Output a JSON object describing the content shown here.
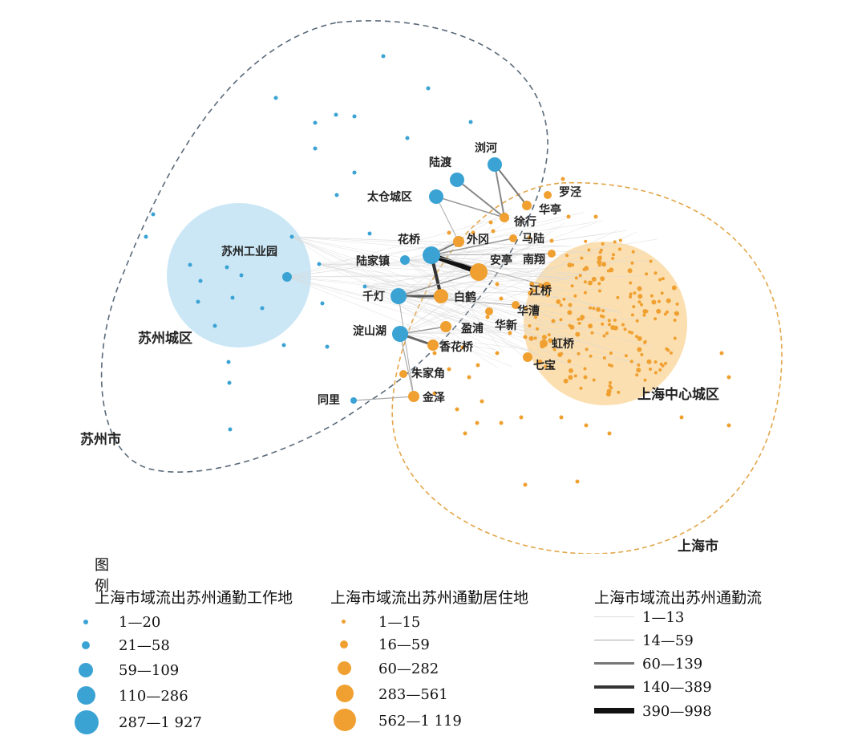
{
  "colors": {
    "work_blue": "#3aa3d4",
    "work_light": "#cbe7f6",
    "residence_orange": "#f0a030",
    "residence_light": "#fbdfb0",
    "suzhou_boundary": "#5a6a7a",
    "shanghai_boundary": "#e3a64a",
    "flow_gray": "#999999",
    "flow_black": "#111111"
  },
  "regions": {
    "suzhou_city": "苏州市",
    "suzhou_district": "苏州城区",
    "suzhou_park": "苏州工业园",
    "shanghai_city": "上海市",
    "shanghai_center": "上海中心城区"
  },
  "places": {
    "liuhe": "浏河",
    "ludu": "陆渡",
    "taicang": "太仓城区",
    "huaqiao": "花桥",
    "lujiazhen": "陆家镇",
    "qiandeng": "千灯",
    "dianshanhu": "淀山湖",
    "tongli": "同里",
    "luojing": "罗泾",
    "huating": "华亭",
    "xuhang": "徐行",
    "malu": "马陆",
    "waigang": "外冈",
    "anting": "安亭",
    "nanxiang": "南翔",
    "baihe": "白鹤",
    "jiangqiao": "江桥",
    "huacao": "华漕",
    "huaxin": "华新",
    "yingpu": "盈浦",
    "xianghuaqiao": "香花桥",
    "hongqiao": "虹桥",
    "qibao": "七宝",
    "zhujiajiao": "朱家角",
    "jinze": "金泽"
  },
  "legend": {
    "heading": "图例",
    "workplace": {
      "title": "上海市域流出苏州通勤工作地",
      "classes": [
        "1—20",
        "21—58",
        "59—109",
        "110—286",
        "287—1 927"
      ]
    },
    "residence": {
      "title": "上海市域流出苏州通勤居住地",
      "classes": [
        "1—15",
        "16—59",
        "60—282",
        "283—561",
        "562—1 119"
      ]
    },
    "flow": {
      "title": "上海市域流出苏州通勤流",
      "classes": [
        "1—13",
        "14—59",
        "60—139",
        "140—389",
        "390—998"
      ]
    }
  }
}
